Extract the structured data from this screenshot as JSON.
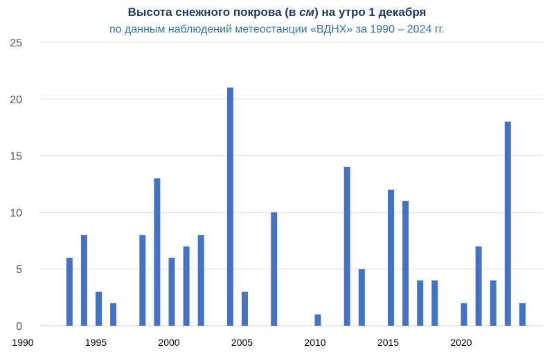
{
  "chart_data": {
    "type": "bar",
    "title_prefix": "Высота снежного покрова (в ",
    "title_unit": "см",
    "title_suffix": ") на утро 1 декабря",
    "subtitle": "по данным наблюдений метеостанции «ВДНХ» за 1990 – 2024 гг.",
    "xlabel": "",
    "ylabel": "",
    "xlim": [
      1990,
      2024
    ],
    "ylim": [
      0,
      25
    ],
    "y_ticks": [
      0,
      5,
      10,
      15,
      20,
      25
    ],
    "x_ticks": [
      1990,
      1995,
      2000,
      2005,
      2010,
      2015,
      2020
    ],
    "grid": true,
    "bar_color": "#4472c4",
    "x": [
      1990,
      1991,
      1992,
      1993,
      1994,
      1995,
      1996,
      1997,
      1998,
      1999,
      2000,
      2001,
      2002,
      2003,
      2004,
      2005,
      2006,
      2007,
      2008,
      2009,
      2010,
      2011,
      2012,
      2013,
      2014,
      2015,
      2016,
      2017,
      2018,
      2019,
      2020,
      2021,
      2022,
      2023,
      2024
    ],
    "values": [
      0,
      0,
      0,
      6,
      8,
      3,
      2,
      0,
      8,
      13,
      6,
      7,
      8,
      0,
      21,
      3,
      0,
      10,
      0,
      0,
      1,
      0,
      14,
      5,
      0,
      12,
      11,
      4,
      4,
      0,
      2,
      7,
      4,
      18,
      2
    ]
  }
}
